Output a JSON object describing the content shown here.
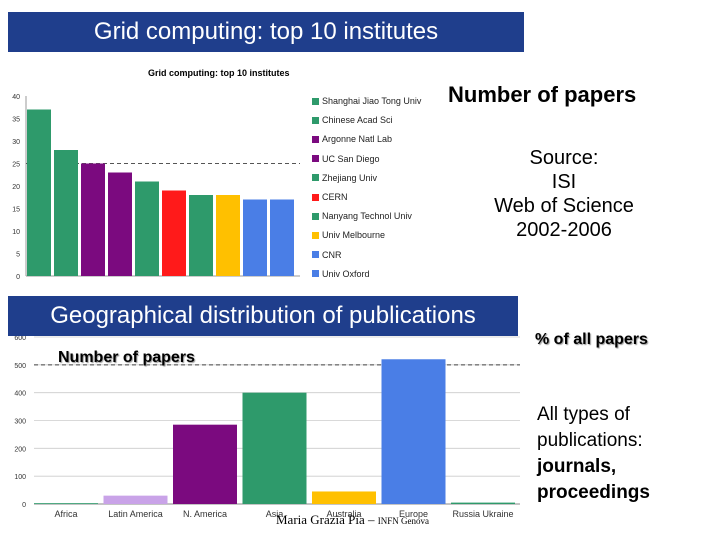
{
  "header": {
    "title": "Grid computing: top 10 institutes",
    "geo_title": "Geographical distribution of publications"
  },
  "side": {
    "number_of_papers": "Number of papers",
    "source_lines": [
      "Source:",
      "ISI",
      "Web of Science",
      "2002-2006"
    ],
    "pct_all_papers": "% of all papers",
    "pub_types_line1": "All types of",
    "pub_types_line2": "publications:",
    "pub_types_line3": "journals,",
    "pub_types_line4": "proceedings"
  },
  "footer": {
    "author": "Maria Grazia Pia –",
    "org": "INFN Genova"
  },
  "colors": {
    "header_bg": "#1f3e8c",
    "green": "#2e9a6b",
    "purple": "#7b0a7f",
    "red": "#ff1a1a",
    "yellow": "#ffc000",
    "blue": "#4a7ee6",
    "lavender": "#c9a3e8"
  },
  "chart_data": [
    {
      "type": "bar",
      "title": "Grid computing: top 10 institutes",
      "categories": [
        "Shanghai Jiao Tong Univ",
        "Chinese Acad Sci",
        "Argonne Natl Lab",
        "UC San Diego",
        "Zhejiang Univ",
        "CERN",
        "Nanyang Technol Univ",
        "Univ Melbourne",
        "CNR",
        "Univ Oxford"
      ],
      "values": [
        37,
        28,
        25,
        23,
        21,
        19,
        18,
        18,
        17,
        17
      ],
      "colors": [
        "#2e9a6b",
        "#2e9a6b",
        "#7b0a7f",
        "#7b0a7f",
        "#2e9a6b",
        "#ff1a1a",
        "#2e9a6b",
        "#ffc000",
        "#4a7ee6",
        "#4a7ee6"
      ],
      "ylim": [
        0,
        40
      ],
      "yticks": [
        "0",
        "5",
        "10",
        "15",
        "20",
        "25",
        "30",
        "35",
        "40"
      ],
      "reference_line": 25,
      "legend_position": "right"
    },
    {
      "type": "bar",
      "title": "Number of papers",
      "categories": [
        "Africa",
        "Latin America",
        "N. America",
        "Asia",
        "Australia",
        "Europe",
        "Russia Ukraine"
      ],
      "values": [
        3,
        30,
        285,
        400,
        45,
        520,
        5
      ],
      "colors": [
        "#2e9a6b",
        "#c9a3e8",
        "#7b0a7f",
        "#2e9a6b",
        "#ffc000",
        "#4a7ee6",
        "#2e9a6b"
      ],
      "ylim": [
        0,
        600
      ],
      "yticks": [
        "0",
        "100",
        "200",
        "300",
        "400",
        "500",
        "600"
      ],
      "reference_line": 500
    }
  ]
}
